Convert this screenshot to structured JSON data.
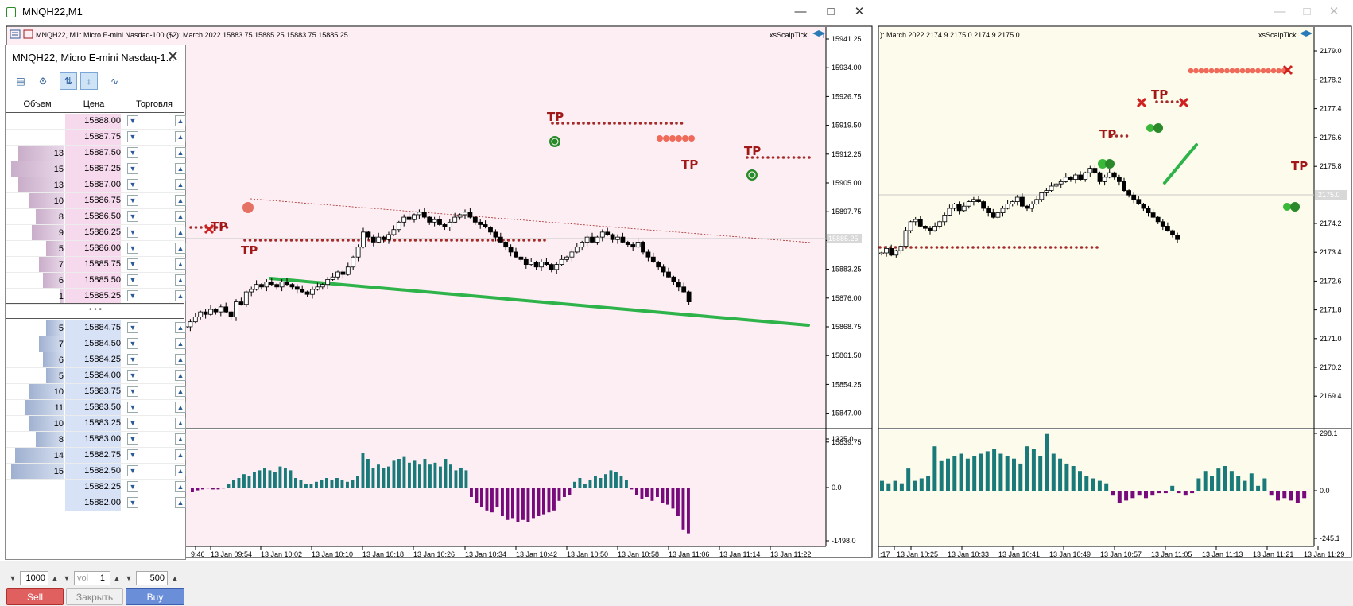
{
  "window1": {
    "title": "MNQH22,M1",
    "info_line": "MNQH22, M1:  Micro E-mini Nasdaq-100 ($2): March 2022   15883.75  15885.25  15883.75  15885.25",
    "indicator_label": "xsScalpTick",
    "price_ticks": [
      "15941.25",
      "15934.00",
      "15926.75",
      "15919.50",
      "15912.25",
      "15905.00",
      "15897.75",
      "15890.50",
      "15883.25",
      "15876.00",
      "15868.75",
      "15861.50",
      "15854.25",
      "15847.00",
      "15839.75"
    ],
    "current_price": "15885.25",
    "osc_ticks": [
      "1325.0",
      "0.0",
      "-1498.0"
    ],
    "time_ticks": [
      "9:46",
      "13 Jan 09:54",
      "13 Jan 10:02",
      "13 Jan 10:10",
      "13 Jan 10:18",
      "13 Jan 10:26",
      "13 Jan 10:34",
      "13 Jan 10:42",
      "13 Jan 10:50",
      "13 Jan 10:58",
      "13 Jan 11:06",
      "13 Jan 11:14",
      "13 Jan 11:22"
    ],
    "tp_label": "TP"
  },
  "window2": {
    "info_line": "): March 2022   2174.9  2175.0  2174.9  2175.0",
    "indicator_label": "xsScalpTick",
    "price_ticks": [
      "2179.0",
      "2178.2",
      "2177.4",
      "2176.6",
      "2175.8",
      "2174.2",
      "2173.4",
      "2172.6",
      "2171.8",
      "2171.0",
      "2170.2",
      "2169.4"
    ],
    "current_price": "2175.0",
    "osc_ticks": [
      "298.1",
      "0.0",
      "-245.1"
    ],
    "time_ticks": [
      ":17",
      "13 Jan 10:25",
      "13 Jan 10:33",
      "13 Jan 10:41",
      "13 Jan 10:49",
      "13 Jan 10:57",
      "13 Jan 11:05",
      "13 Jan 11:13",
      "13 Jan 11:21",
      "13 Jan 11:29"
    ],
    "tp_label": "TP"
  },
  "dom": {
    "title": "MNQH22, Micro E-mini Nasdaq-1...",
    "columns": {
      "volume": "Объем",
      "price": "Цена",
      "trade": "Торговля"
    },
    "asks": [
      {
        "vol": "",
        "price": "15888.00",
        "bar": 0
      },
      {
        "vol": "",
        "price": "15887.75",
        "bar": 0
      },
      {
        "vol": "13",
        "price": "15887.50",
        "bar": 0.87
      },
      {
        "vol": "15",
        "price": "15887.25",
        "bar": 1.0
      },
      {
        "vol": "13",
        "price": "15887.00",
        "bar": 0.87
      },
      {
        "vol": "10",
        "price": "15886.75",
        "bar": 0.67
      },
      {
        "vol": "8",
        "price": "15886.50",
        "bar": 0.53
      },
      {
        "vol": "9",
        "price": "15886.25",
        "bar": 0.6
      },
      {
        "vol": "5",
        "price": "15886.00",
        "bar": 0.33
      },
      {
        "vol": "7",
        "price": "15885.75",
        "bar": 0.47
      },
      {
        "vol": "6",
        "price": "15885.50",
        "bar": 0.4
      },
      {
        "vol": "1",
        "price": "15885.25",
        "bar": 0.07
      }
    ],
    "bids": [
      {
        "vol": "5",
        "price": "15884.75",
        "bar": 0.33
      },
      {
        "vol": "7",
        "price": "15884.50",
        "bar": 0.47
      },
      {
        "vol": "6",
        "price": "15884.25",
        "bar": 0.4
      },
      {
        "vol": "5",
        "price": "15884.00",
        "bar": 0.33
      },
      {
        "vol": "10",
        "price": "15883.75",
        "bar": 0.67
      },
      {
        "vol": "11",
        "price": "15883.50",
        "bar": 0.73
      },
      {
        "vol": "10",
        "price": "15883.25",
        "bar": 0.67
      },
      {
        "vol": "8",
        "price": "15883.00",
        "bar": 0.53
      },
      {
        "vol": "14",
        "price": "15882.75",
        "bar": 0.93
      },
      {
        "vol": "15",
        "price": "15882.50",
        "bar": 1.0
      },
      {
        "vol": "",
        "price": "15882.25",
        "bar": 0
      },
      {
        "vol": "",
        "price": "15882.00",
        "bar": 0
      }
    ],
    "separator": "• • •",
    "lot_value": "1000",
    "vol_placeholder": "vol",
    "vol_value": "1",
    "step_value": "500",
    "sell_label": "Sell",
    "close_label": "Закрыть",
    "buy_label": "Buy",
    "tools": [
      "chart-icon",
      "depth-icon",
      "filter-icon",
      "cursor-icon",
      "signal-icon"
    ]
  },
  "colors": {
    "bg1": "#fdeef3",
    "bg2": "#fdfcec",
    "bull": "#1a7a7a",
    "bear": "#780a7c",
    "green_line": "#2db34a",
    "dots": "#a52a2a",
    "tp": "#a01818"
  }
}
